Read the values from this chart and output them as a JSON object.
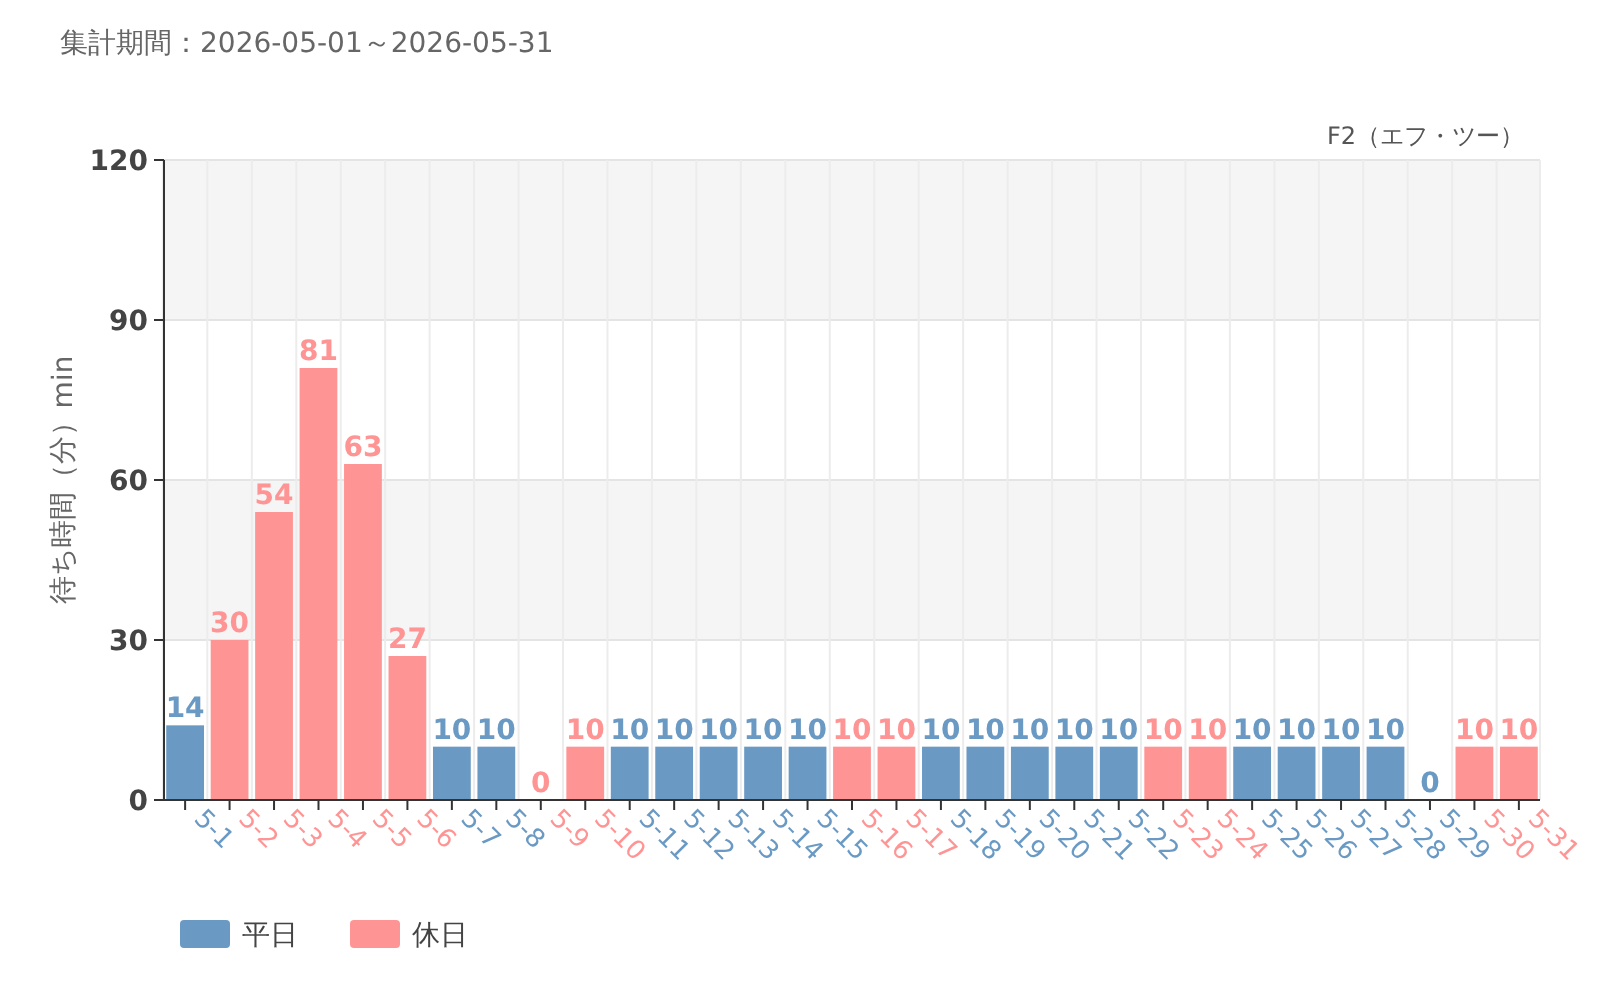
{
  "chart_data": {
    "type": "bar",
    "title": "集計期間：2026-05-01～2026-05-31",
    "annotations": [
      "F2（エフ・ツー）"
    ],
    "ylabel": "待ち時間（分）min",
    "categories": [
      "5-1",
      "5-2",
      "5-3",
      "5-4",
      "5-5",
      "5-6",
      "5-7",
      "5-8",
      "5-9",
      "5-10",
      "5-11",
      "5-12",
      "5-13",
      "5-14",
      "5-15",
      "5-16",
      "5-17",
      "5-18",
      "5-19",
      "5-20",
      "5-21",
      "5-22",
      "5-23",
      "5-24",
      "5-25",
      "5-26",
      "5-27",
      "5-28",
      "5-29",
      "5-30",
      "5-31"
    ],
    "series": [
      {
        "name": "平日",
        "color": "#6a9ac4",
        "values": [
          14,
          null,
          null,
          null,
          null,
          null,
          10,
          10,
          null,
          null,
          10,
          10,
          10,
          10,
          10,
          null,
          null,
          10,
          10,
          10,
          10,
          10,
          null,
          null,
          10,
          10,
          10,
          10,
          0,
          null,
          null
        ]
      },
      {
        "name": "休日",
        "color": "#ff9494",
        "values": [
          null,
          30,
          54,
          81,
          63,
          27,
          null,
          null,
          0,
          10,
          null,
          null,
          null,
          null,
          null,
          10,
          10,
          null,
          null,
          null,
          null,
          null,
          10,
          10,
          null,
          null,
          null,
          null,
          null,
          10,
          10
        ]
      }
    ],
    "ylim": [
      0,
      120
    ],
    "yticks": [
      0,
      30,
      60,
      90,
      120
    ],
    "grid": true,
    "legend": "bottom left",
    "data_labels": true,
    "bands": [
      {
        "axis": "y",
        "from": 30,
        "to": 60,
        "color": "#f5f5f5"
      },
      {
        "axis": "y",
        "from": 90,
        "to": 120,
        "color": "#f5f5f5"
      }
    ]
  }
}
